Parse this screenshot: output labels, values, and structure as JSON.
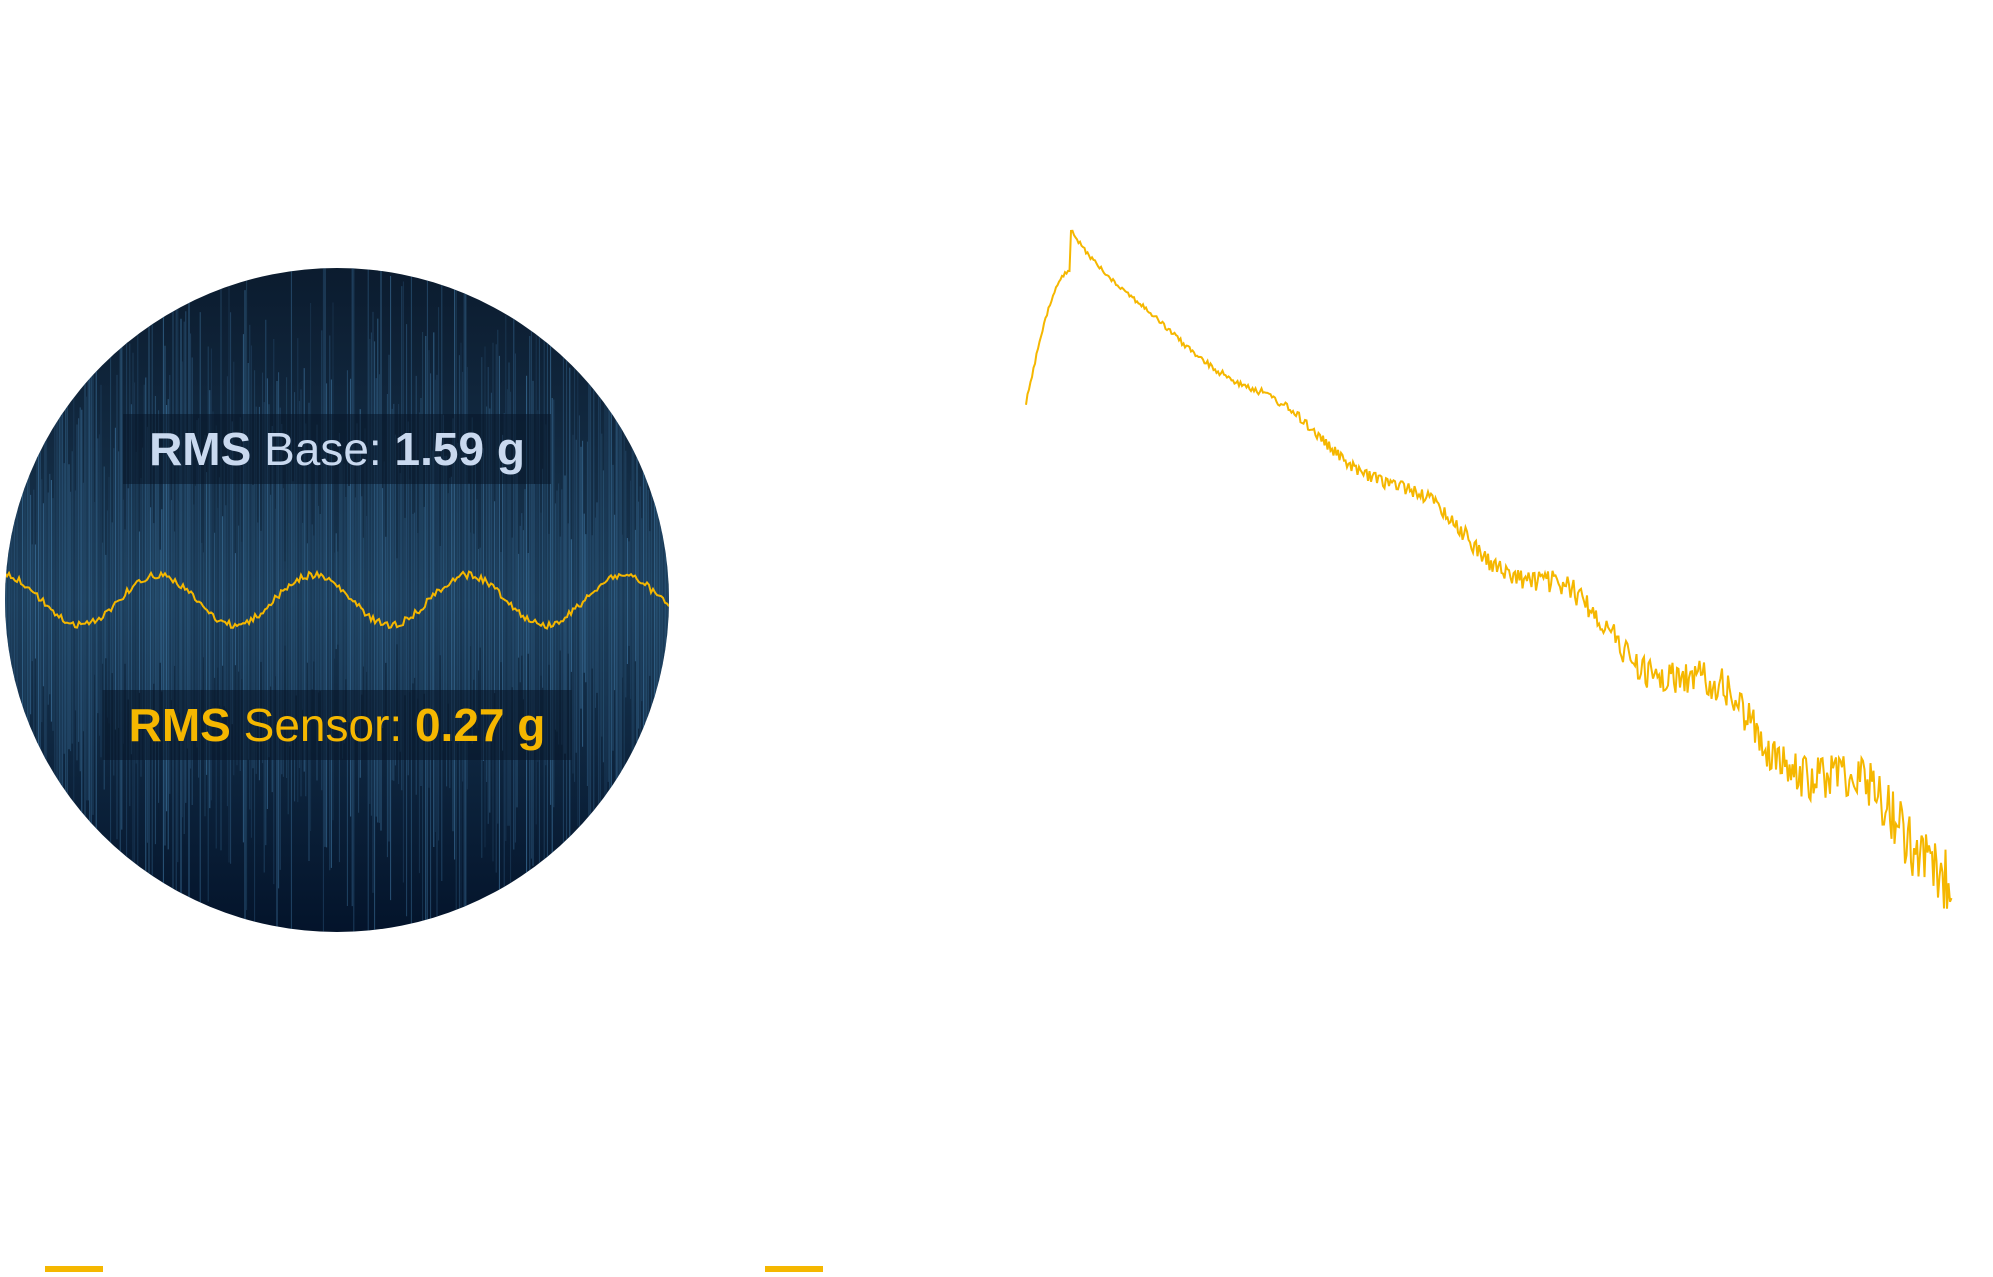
{
  "rms_base": {
    "label": "RMS",
    "name": "Base:",
    "value": "1.59 g"
  },
  "rms_sensor": {
    "label": "RMS",
    "name": "Sensor:",
    "value": "0.27 g"
  }
}
